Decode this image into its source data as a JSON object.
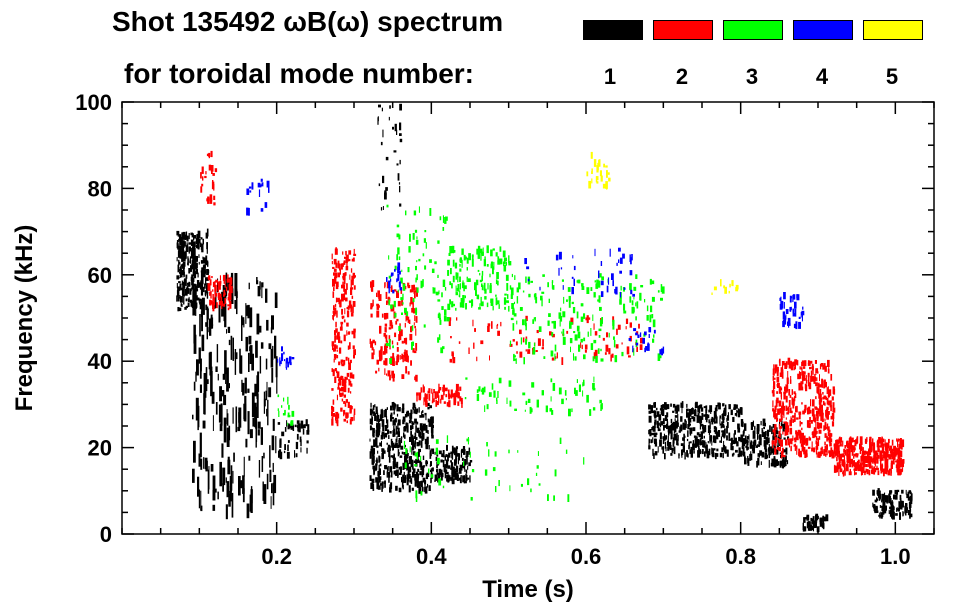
{
  "chart_data": {
    "type": "scatter",
    "title_line1": "Shot 135492 ωB(ω) spectrum",
    "title_line2": "for toroidal mode number:",
    "xlabel": "Time (s)",
    "ylabel": "Frequency (kHz)",
    "xlim": [
      0.0,
      1.05
    ],
    "ylim": [
      0,
      100
    ],
    "x_ticks": [
      0.2,
      0.4,
      0.6,
      0.8,
      1.0
    ],
    "x_tick_labels": [
      "0.2",
      "0.4",
      "0.6",
      "0.8",
      "1.0"
    ],
    "y_ticks": [
      0,
      20,
      40,
      60,
      80,
      100
    ],
    "y_tick_labels": [
      "0",
      "20",
      "40",
      "60",
      "80",
      "100"
    ],
    "legend": [
      {
        "label": "1",
        "color": "#000000"
      },
      {
        "label": "2",
        "color": "#ff0000"
      },
      {
        "label": "3",
        "color": "#00ff00"
      },
      {
        "label": "4",
        "color": "#0000ff"
      },
      {
        "label": "5",
        "color": "#ffff00"
      }
    ],
    "series": [
      {
        "name": "n=1",
        "color": "#000000",
        "regions": [
          {
            "t": [
              0.07,
              0.11
            ],
            "f": [
              52,
              70
            ],
            "density": 260
          },
          {
            "t": [
              0.09,
              0.2
            ],
            "f": [
              5,
              60
            ],
            "density": 240,
            "streaks": true
          },
          {
            "t": [
              0.2,
              0.24
            ],
            "f": [
              18,
              26
            ],
            "density": 40
          },
          {
            "t": [
              0.32,
              0.4
            ],
            "f": [
              10,
              30
            ],
            "density": 420
          },
          {
            "t": [
              0.4,
              0.45
            ],
            "f": [
              12,
              20
            ],
            "density": 120
          },
          {
            "t": [
              0.68,
              0.8
            ],
            "f": [
              18,
              30
            ],
            "density": 380
          },
          {
            "t": [
              0.8,
              0.86
            ],
            "f": [
              16,
              26
            ],
            "density": 160
          },
          {
            "t": [
              0.97,
              1.02
            ],
            "f": [
              4,
              10
            ],
            "density": 120
          },
          {
            "t": [
              0.88,
              0.91
            ],
            "f": [
              1,
              4
            ],
            "density": 40
          },
          {
            "t": [
              0.33,
              0.36
            ],
            "f": [
              75,
              100
            ],
            "density": 30
          }
        ]
      },
      {
        "name": "n=2",
        "color": "#ff0000",
        "regions": [
          {
            "t": [
              0.11,
              0.14
            ],
            "f": [
              52,
              60
            ],
            "density": 70
          },
          {
            "t": [
              0.27,
              0.3
            ],
            "f": [
              25,
              66
            ],
            "density": 220
          },
          {
            "t": [
              0.32,
              0.38
            ],
            "f": [
              36,
              58
            ],
            "density": 160
          },
          {
            "t": [
              0.38,
              0.44
            ],
            "f": [
              30,
              34
            ],
            "density": 60
          },
          {
            "t": [
              0.42,
              0.67
            ],
            "f": [
              40,
              50
            ],
            "density": 90
          },
          {
            "t": [
              0.84,
              0.92
            ],
            "f": [
              18,
              40
            ],
            "density": 420
          },
          {
            "t": [
              0.92,
              1.01
            ],
            "f": [
              14,
              22
            ],
            "density": 360
          },
          {
            "t": [
              0.1,
              0.12
            ],
            "f": [
              76,
              88
            ],
            "density": 25
          }
        ]
      },
      {
        "name": "n=3",
        "color": "#00ff00",
        "regions": [
          {
            "t": [
              0.34,
              0.42
            ],
            "f": [
              40,
              76
            ],
            "density": 90
          },
          {
            "t": [
              0.42,
              0.5
            ],
            "f": [
              52,
              66
            ],
            "density": 140
          },
          {
            "t": [
              0.5,
              0.7
            ],
            "f": [
              40,
              60
            ],
            "density": 180
          },
          {
            "t": [
              0.44,
              0.62
            ],
            "f": [
              28,
              36
            ],
            "density": 60
          },
          {
            "t": [
              0.36,
              0.6
            ],
            "f": [
              8,
              22
            ],
            "density": 50
          },
          {
            "t": [
              0.2,
              0.22
            ],
            "f": [
              25,
              32
            ],
            "density": 15
          }
        ]
      },
      {
        "name": "n=4",
        "color": "#0000ff",
        "regions": [
          {
            "t": [
              0.34,
              0.36
            ],
            "f": [
              55,
              62
            ],
            "density": 15
          },
          {
            "t": [
              0.52,
              0.66
            ],
            "f": [
              55,
              66
            ],
            "density": 40
          },
          {
            "t": [
              0.65,
              0.7
            ],
            "f": [
              42,
              48
            ],
            "density": 20
          },
          {
            "t": [
              0.85,
              0.88
            ],
            "f": [
              48,
              56
            ],
            "density": 40
          },
          {
            "t": [
              0.2,
              0.22
            ],
            "f": [
              38,
              44
            ],
            "density": 15
          },
          {
            "t": [
              0.16,
              0.19
            ],
            "f": [
              74,
              82
            ],
            "density": 15
          }
        ]
      },
      {
        "name": "n=5",
        "color": "#ffff00",
        "regions": [
          {
            "t": [
              0.6,
              0.63
            ],
            "f": [
              80,
              88
            ],
            "density": 25
          },
          {
            "t": [
              0.76,
              0.8
            ],
            "f": [
              55,
              60
            ],
            "density": 10
          }
        ]
      }
    ]
  }
}
